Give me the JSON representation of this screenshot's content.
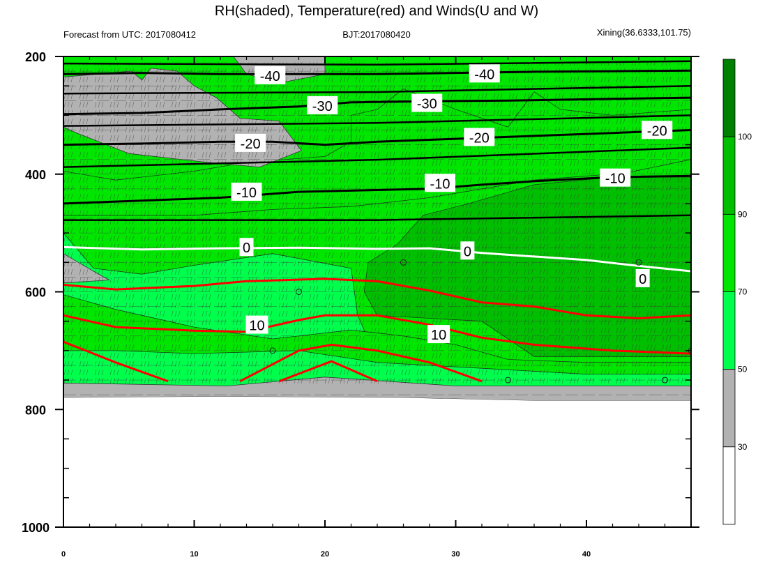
{
  "header": {
    "title": "RH(shaded), Temperature(red) and Winds(U and W)",
    "left": "Forecast from UTC: 2017080412",
    "center": "BJT:2017080420",
    "right": "Xining(36.6333,101.75)"
  },
  "chart_data": {
    "type": "heatmap",
    "title": "RH(shaded), Temperature(red) and Winds(U and W)",
    "x_ticks": [
      "0",
      "10",
      "20",
      "30",
      "40"
    ],
    "x_tick_values": [
      0,
      10,
      20,
      30,
      40
    ],
    "xlim": [
      0,
      48
    ],
    "y_ticks": [
      "200",
      "400",
      "600",
      "800",
      "1000"
    ],
    "y_tick_values": [
      200,
      400,
      600,
      800,
      1000
    ],
    "ylim": [
      1000,
      200
    ],
    "y_reversed": true,
    "colorbar": {
      "levels": [
        30,
        50,
        70,
        90,
        100
      ],
      "labels": [
        "30",
        "50",
        "70",
        "90",
        "100"
      ],
      "colors": [
        "#ffffff",
        "#b2b2b2",
        "#00ff4c",
        "#00e600",
        "#00bf00",
        "#008000"
      ]
    },
    "colors": {
      "temperature_warm": "#ff0000",
      "freezing": "#ffffff",
      "temperature_cold": "#000000"
    },
    "rh_regions": [
      {
        "rh_class": "50-70",
        "points": [
          [
            0,
            500
          ],
          [
            2.3,
            560
          ],
          [
            6,
            570
          ],
          [
            10,
            555
          ],
          [
            16,
            535
          ],
          [
            22,
            560
          ],
          [
            22.5,
            640
          ],
          [
            23.5,
            690
          ],
          [
            28,
            700
          ],
          [
            32,
            720
          ],
          [
            36,
            735
          ],
          [
            40,
            740
          ],
          [
            48,
            740
          ],
          [
            48,
            765
          ],
          [
            36,
            770
          ],
          [
            28,
            768
          ],
          [
            20,
            745
          ],
          [
            12,
            770
          ],
          [
            0,
            760
          ]
        ]
      },
      {
        "rh_class": "70-90",
        "points": [
          [
            0,
            395
          ],
          [
            4,
            410
          ],
          [
            10,
            395
          ],
          [
            14,
            380
          ],
          [
            20,
            370
          ],
          [
            22,
            345
          ],
          [
            22,
            300
          ],
          [
            24,
            290
          ],
          [
            26,
            255
          ],
          [
            30,
            290
          ],
          [
            34,
            320
          ],
          [
            36,
            260
          ],
          [
            38,
            290
          ],
          [
            42,
            300
          ],
          [
            48,
            290
          ],
          [
            48,
            375
          ],
          [
            43,
            398
          ],
          [
            36,
            410
          ],
          [
            28,
            440
          ],
          [
            22,
            455
          ],
          [
            16,
            460
          ],
          [
            10,
            470
          ],
          [
            3,
            470
          ],
          [
            0,
            470
          ],
          [
            0,
            470
          ]
        ]
      },
      {
        "rh_class": "70-90",
        "points": [
          [
            0,
            605
          ],
          [
            4,
            630
          ],
          [
            10,
            660
          ],
          [
            16,
            680
          ],
          [
            22,
            665
          ],
          [
            26,
            675
          ],
          [
            30,
            690
          ],
          [
            34,
            715
          ],
          [
            40,
            720
          ],
          [
            48,
            720
          ],
          [
            48,
            740
          ],
          [
            40,
            740
          ],
          [
            32,
            730
          ],
          [
            24,
            720
          ],
          [
            18,
            700
          ],
          [
            10,
            705
          ],
          [
            4,
            700
          ],
          [
            0,
            700
          ]
        ]
      },
      {
        "rh_class": "90-100",
        "points": [
          [
            23.3,
            550
          ],
          [
            25.5,
            520
          ],
          [
            27.5,
            470
          ],
          [
            31,
            450
          ],
          [
            36,
            418
          ],
          [
            42,
            405
          ],
          [
            48,
            405
          ],
          [
            48,
            710
          ],
          [
            36,
            710
          ],
          [
            32,
            650
          ],
          [
            24,
            640
          ],
          [
            23,
            600
          ]
        ]
      }
    ],
    "dry_regions": [
      {
        "rh_class": "<30",
        "points": [
          [
            0,
            245
          ],
          [
            5.5,
            245
          ],
          [
            5.5,
            265
          ],
          [
            0,
            265
          ]
        ]
      },
      {
        "rh_class": "<30",
        "points": [
          [
            0,
            285
          ],
          [
            5.3,
            285
          ],
          [
            5.5,
            305
          ],
          [
            0,
            300
          ]
        ]
      },
      {
        "rh_class": "<30",
        "points": [
          [
            12.4,
            335
          ],
          [
            14.5,
            315
          ],
          [
            16.5,
            320
          ],
          [
            16.5,
            350
          ],
          [
            14,
            355
          ],
          [
            12.4,
            345
          ]
        ]
      },
      {
        "rh_class": "30-50",
        "points": [
          [
            0,
            235
          ],
          [
            5.2,
            225
          ],
          [
            6,
            240
          ],
          [
            6.7,
            220
          ],
          [
            8.7,
            225
          ],
          [
            10,
            250
          ],
          [
            11.7,
            270
          ],
          [
            13.5,
            305
          ],
          [
            16.5,
            310
          ],
          [
            18.2,
            360
          ],
          [
            15,
            388
          ],
          [
            11,
            380
          ],
          [
            5,
            365
          ],
          [
            1,
            330
          ],
          [
            0,
            320
          ]
        ]
      },
      {
        "rh_class": "30-50",
        "points": [
          [
            13,
            200
          ],
          [
            20,
            200
          ],
          [
            20,
            230
          ],
          [
            16.5,
            245
          ],
          [
            14,
            230
          ]
        ]
      },
      {
        "rh_class": "30-50",
        "points": [
          [
            0,
            535
          ],
          [
            2.3,
            565
          ],
          [
            3.5,
            580
          ],
          [
            0,
            585
          ]
        ]
      },
      {
        "rh_class": "30-50",
        "points": [
          [
            0,
            755
          ],
          [
            12.5,
            760
          ],
          [
            20,
            745
          ],
          [
            30,
            760
          ],
          [
            48,
            760
          ],
          [
            48,
            785
          ],
          [
            36,
            785
          ],
          [
            26,
            780
          ],
          [
            12,
            778
          ],
          [
            0,
            780
          ]
        ]
      }
    ],
    "temperature_contours": [
      {
        "level": -40,
        "color": "black",
        "points": [
          [
            0,
            230
          ],
          [
            6,
            228
          ],
          [
            12,
            230
          ],
          [
            18,
            230
          ],
          [
            24,
            230
          ],
          [
            30,
            228
          ],
          [
            36,
            226
          ],
          [
            42,
            225
          ],
          [
            48,
            224
          ]
        ]
      },
      {
        "level": -30,
        "color": "black",
        "points": [
          [
            0,
            298
          ],
          [
            6,
            296
          ],
          [
            12,
            290
          ],
          [
            18,
            285
          ],
          [
            22,
            278
          ],
          [
            28,
            276
          ],
          [
            34,
            275
          ],
          [
            42,
            272
          ],
          [
            48,
            270
          ]
        ]
      },
      {
        "level": -20,
        "color": "black",
        "points": [
          [
            0,
            350
          ],
          [
            6,
            348
          ],
          [
            12,
            345
          ],
          [
            16,
            345
          ],
          [
            20,
            350
          ],
          [
            24,
            345
          ],
          [
            30,
            340
          ],
          [
            36,
            335
          ],
          [
            42,
            330
          ],
          [
            48,
            325
          ]
        ]
      },
      {
        "level": -10,
        "color": "black",
        "points": [
          [
            0,
            450
          ],
          [
            6,
            445
          ],
          [
            12,
            440
          ],
          [
            18,
            430
          ],
          [
            22,
            428
          ],
          [
            28,
            425
          ],
          [
            32,
            418
          ],
          [
            36,
            412
          ],
          [
            42,
            405
          ],
          [
            48,
            403
          ]
        ]
      },
      {
        "level": 0,
        "color": "white",
        "points": [
          [
            0,
            524
          ],
          [
            6,
            528
          ],
          [
            12,
            526
          ],
          [
            18,
            525
          ],
          [
            24,
            527
          ],
          [
            28,
            526
          ],
          [
            32,
            534
          ],
          [
            36,
            540
          ],
          [
            40,
            546
          ],
          [
            44,
            556
          ],
          [
            48,
            565
          ]
        ]
      },
      {
        "level": 10,
        "color": "red",
        "points": [
          [
            0,
            640
          ],
          [
            4,
            660
          ],
          [
            10,
            666
          ],
          [
            14,
            668
          ],
          [
            18,
            648
          ],
          [
            20,
            640
          ],
          [
            24,
            640
          ],
          [
            28,
            656
          ],
          [
            32,
            678
          ],
          [
            36,
            690
          ],
          [
            42,
            700
          ],
          [
            48,
            705
          ]
        ]
      },
      {
        "level": 20,
        "color": "red",
        "points": [
          [
            0,
            588
          ],
          [
            4,
            596
          ],
          [
            10,
            590
          ],
          [
            14,
            582
          ],
          [
            20,
            578
          ],
          [
            24,
            582
          ],
          [
            28,
            598
          ],
          [
            32,
            618
          ],
          [
            36,
            625
          ],
          [
            40,
            640
          ],
          [
            44,
            645
          ],
          [
            48,
            640
          ]
        ]
      }
    ],
    "contour_labels": [
      {
        "text": "-40",
        "x": 15.8,
        "y": 233
      },
      {
        "text": "-40",
        "x": 32.2,
        "y": 230
      },
      {
        "text": "-30",
        "x": 19.8,
        "y": 284
      },
      {
        "text": "-30",
        "x": 27.8,
        "y": 280
      },
      {
        "text": "-20",
        "x": 14.3,
        "y": 348
      },
      {
        "text": "-20",
        "x": 31.8,
        "y": 338
      },
      {
        "text": "-20",
        "x": 45.4,
        "y": 326
      },
      {
        "text": "-10",
        "x": 14.0,
        "y": 431
      },
      {
        "text": "-10",
        "x": 28.8,
        "y": 416
      },
      {
        "text": "-10",
        "x": 42.2,
        "y": 407
      },
      {
        "text": "0",
        "x": 14.0,
        "y": 525
      },
      {
        "text": "0",
        "x": 30.9,
        "y": 531
      },
      {
        "text": "0",
        "x": 44.3,
        "y": 578
      },
      {
        "text": "10",
        "x": 14.8,
        "y": 657
      },
      {
        "text": "10",
        "x": 28.7,
        "y": 673
      }
    ],
    "hatched_region": [
      [
        0,
        210
      ],
      [
        48,
        210
      ],
      [
        48,
        760
      ],
      [
        0,
        760
      ]
    ],
    "wind_circles": [
      [
        18,
        600
      ],
      [
        16,
        700
      ],
      [
        26,
        550
      ],
      [
        44,
        550
      ],
      [
        34,
        750
      ],
      [
        46,
        750
      ],
      [
        48,
        700
      ]
    ]
  }
}
